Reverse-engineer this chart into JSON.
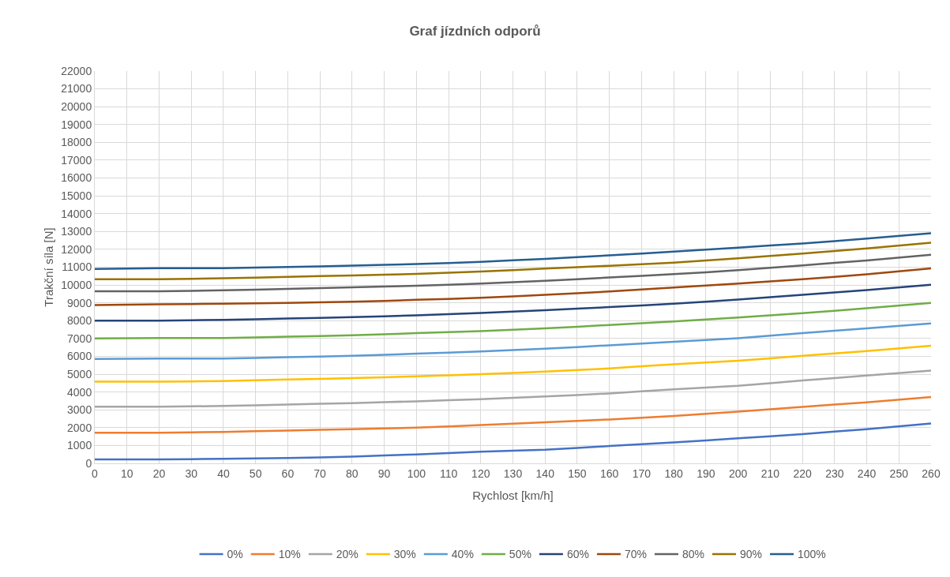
{
  "chart_data": {
    "type": "line",
    "title": "Graf jízdních odporů",
    "xlabel": "Rychlost [km/h]",
    "ylabel": "Trakční síla [N]",
    "x": [
      0,
      20,
      40,
      60,
      80,
      100,
      120,
      140,
      160,
      180,
      200,
      220,
      240,
      260
    ],
    "xlim": [
      0,
      260
    ],
    "xticks": [
      0,
      10,
      20,
      30,
      40,
      50,
      60,
      70,
      80,
      90,
      100,
      110,
      120,
      130,
      140,
      150,
      160,
      170,
      180,
      190,
      200,
      210,
      220,
      230,
      240,
      250,
      260
    ],
    "ylim": [
      0,
      22000
    ],
    "yticks": [
      0,
      1000,
      2000,
      3000,
      4000,
      5000,
      6000,
      7000,
      8000,
      9000,
      10000,
      11000,
      12000,
      13000,
      14000,
      15000,
      16000,
      17000,
      18000,
      19000,
      20000,
      21000,
      22000
    ],
    "grid": true,
    "legend": "bottom",
    "marker": "none",
    "line_style": "solid",
    "series": [
      {
        "name": "0%",
        "color": "#4472c4",
        "values": [
          220,
          220,
          250,
          300,
          380,
          500,
          650,
          760,
          970,
          1170,
          1400,
          1640,
          1920,
          2230
        ]
      },
      {
        "name": "10%",
        "color": "#ed7d31",
        "values": [
          1720,
          1720,
          1760,
          1840,
          1920,
          2000,
          2150,
          2300,
          2460,
          2660,
          2900,
          3170,
          3420,
          3720
        ]
      },
      {
        "name": "20%",
        "color": "#a5a5a5",
        "values": [
          3180,
          3180,
          3220,
          3300,
          3380,
          3480,
          3600,
          3750,
          3920,
          4150,
          4350,
          4650,
          4920,
          5200
        ]
      },
      {
        "name": "30%",
        "color": "#ffc000",
        "values": [
          4580,
          4580,
          4620,
          4700,
          4780,
          4880,
          5000,
          5150,
          5320,
          5560,
          5750,
          6030,
          6300,
          6600
        ]
      },
      {
        "name": "40%",
        "color": "#5b9bd5",
        "values": [
          5850,
          5880,
          5880,
          5950,
          6030,
          6150,
          6270,
          6430,
          6620,
          6820,
          7020,
          7300,
          7570,
          7850
        ]
      },
      {
        "name": "50%",
        "color": "#70ad47",
        "values": [
          7000,
          7030,
          7030,
          7100,
          7180,
          7300,
          7420,
          7570,
          7760,
          7960,
          8180,
          8420,
          8700,
          9000
        ]
      },
      {
        "name": "60%",
        "color": "#264478",
        "values": [
          8000,
          8000,
          8050,
          8120,
          8200,
          8300,
          8430,
          8590,
          8760,
          8950,
          9180,
          9450,
          9720,
          10020
        ]
      },
      {
        "name": "70%",
        "color": "#9e480e",
        "values": [
          8880,
          8920,
          8950,
          9000,
          9060,
          9170,
          9280,
          9450,
          9640,
          9860,
          10080,
          10330,
          10600,
          10930
        ]
      },
      {
        "name": "80%",
        "color": "#636363",
        "values": [
          9650,
          9650,
          9700,
          9780,
          9870,
          9960,
          10080,
          10240,
          10420,
          10610,
          10830,
          11100,
          11380,
          11700
        ]
      },
      {
        "name": "90%",
        "color": "#997300",
        "values": [
          10330,
          10330,
          10380,
          10460,
          10540,
          10620,
          10760,
          10920,
          11080,
          11260,
          11500,
          11760,
          12050,
          12370
        ]
      },
      {
        "name": "100%",
        "color": "#255e91",
        "values": [
          10900,
          10950,
          10950,
          11010,
          11090,
          11180,
          11300,
          11470,
          11660,
          11870,
          12100,
          12330,
          12600,
          12900
        ]
      }
    ]
  }
}
